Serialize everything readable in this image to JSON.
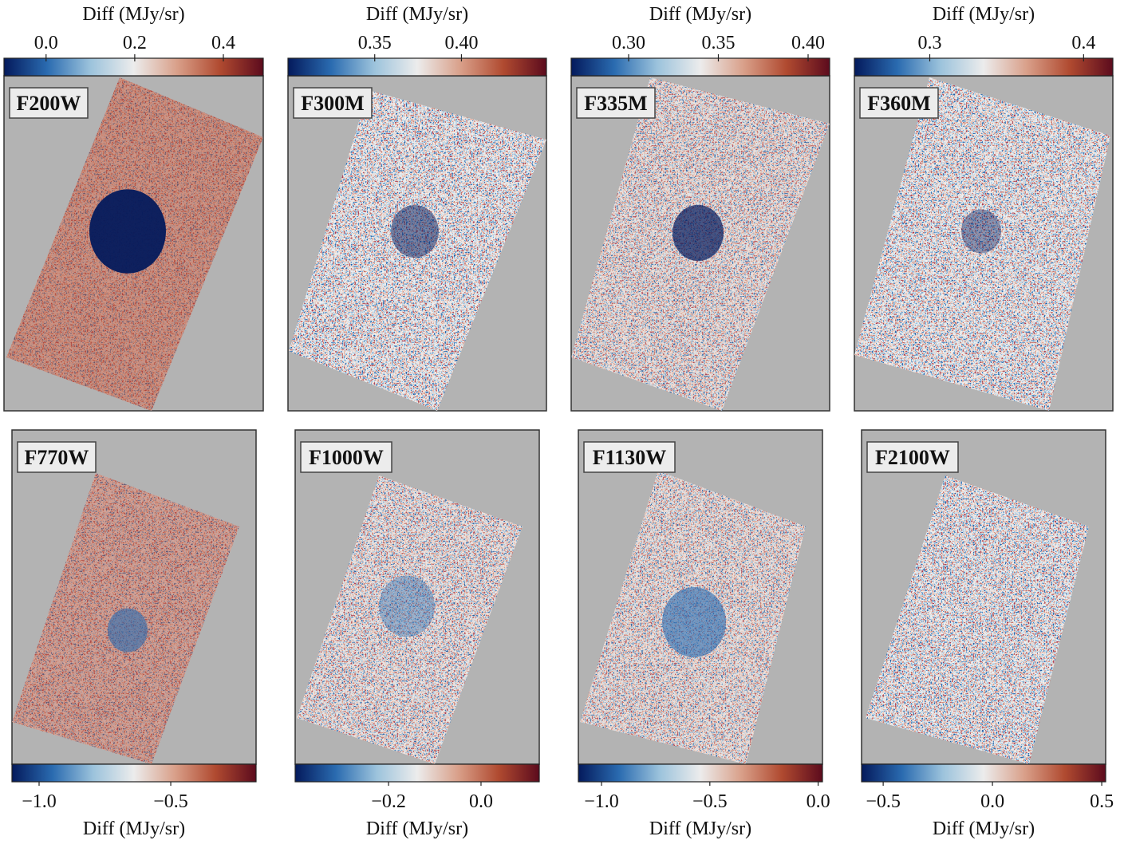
{
  "chart_data": [
    {
      "type": "image",
      "title": "F200W",
      "colormap": [
        "#041a5c",
        "#2a6bb0",
        "#9cc3dc",
        "#ececec",
        "#d9a08a",
        "#b04a30",
        "#5c0b1d"
      ],
      "colorbar": {
        "position": "top",
        "label": "Diff (MJy/sr)",
        "xlim": [
          -0.095,
          0.49
        ],
        "xticks": [
          {
            "value": 0,
            "label": "0.0"
          },
          0.2,
          0.4
        ]
      }
    },
    {
      "type": "image",
      "title": "F300M",
      "colormap": [
        "#041a5c",
        "#2a6bb0",
        "#9cc3dc",
        "#ececec",
        "#d9a08a",
        "#b04a30",
        "#5c0b1d"
      ],
      "colorbar": {
        "position": "top",
        "label": "Diff (MJy/sr)",
        "xlim": [
          0.3,
          0.449
        ],
        "xticks": [
          0.35,
          {
            "value": 0.4,
            "label": "0.40"
          }
        ]
      }
    },
    {
      "type": "image",
      "title": "F335M",
      "colormap": [
        "#041a5c",
        "#2a6bb0",
        "#9cc3dc",
        "#ececec",
        "#d9a08a",
        "#b04a30",
        "#5c0b1d"
      ],
      "colorbar": {
        "position": "top",
        "label": "Diff (MJy/sr)",
        "xlim": [
          0.268,
          0.412
        ],
        "xticks": [
          {
            "value": 0.3,
            "label": "0.30"
          },
          0.35,
          {
            "value": 0.4,
            "label": "0.40"
          }
        ]
      }
    },
    {
      "type": "image",
      "title": "F360M",
      "colormap": [
        "#041a5c",
        "#2a6bb0",
        "#9cc3dc",
        "#ececec",
        "#d9a08a",
        "#b04a30",
        "#5c0b1d"
      ],
      "colorbar": {
        "position": "top",
        "label": "Diff (MJy/sr)",
        "xlim": [
          0.251,
          0.419
        ],
        "xticks": [
          0.3,
          0.4
        ]
      }
    },
    {
      "type": "image",
      "title": "F770W",
      "colormap": [
        "#041a5c",
        "#2a6bb0",
        "#9cc3dc",
        "#ececec",
        "#d9a08a",
        "#b04a30",
        "#5c0b1d"
      ],
      "colorbar": {
        "position": "bottom",
        "label": "Diff (MJy/sr)",
        "xlim": [
          -1.103,
          -0.176
        ],
        "xticks": [
          {
            "value": -1,
            "label": "−1.0"
          },
          {
            "value": -0.5,
            "label": "−0.5"
          }
        ]
      }
    },
    {
      "type": "image",
      "title": "F1000W",
      "colormap": [
        "#041a5c",
        "#2a6bb0",
        "#9cc3dc",
        "#ececec",
        "#d9a08a",
        "#b04a30",
        "#5c0b1d"
      ],
      "colorbar": {
        "position": "bottom",
        "label": "Diff (MJy/sr)",
        "xlim": [
          -0.402,
          0.126
        ],
        "xticks": [
          {
            "value": -0.2,
            "label": "−0.2"
          },
          {
            "value": 0,
            "label": "0.0"
          }
        ]
      }
    },
    {
      "type": "image",
      "title": "F1130W",
      "colormap": [
        "#041a5c",
        "#2a6bb0",
        "#9cc3dc",
        "#ececec",
        "#d9a08a",
        "#b04a30",
        "#5c0b1d"
      ],
      "colorbar": {
        "position": "bottom",
        "label": "Diff (MJy/sr)",
        "xlim": [
          -1.107,
          0.02
        ],
        "xticks": [
          {
            "value": -1,
            "label": "−1.0"
          },
          {
            "value": -0.5,
            "label": "−0.5"
          },
          {
            "value": 0,
            "label": "0.0"
          }
        ]
      }
    },
    {
      "type": "image",
      "title": "F2100W",
      "colormap": [
        "#041a5c",
        "#2a6bb0",
        "#9cc3dc",
        "#ececec",
        "#d9a08a",
        "#b04a30",
        "#5c0b1d"
      ],
      "colorbar": {
        "position": "bottom",
        "label": "Diff (MJy/sr)",
        "xlim": [
          -0.599,
          0.518
        ],
        "xticks": [
          {
            "value": -0.5,
            "label": "−0.5"
          },
          {
            "value": 0,
            "label": "0.0"
          },
          0.5
        ]
      }
    }
  ]
}
